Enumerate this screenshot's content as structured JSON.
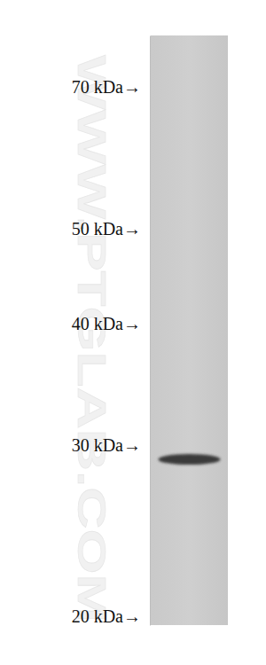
{
  "chart_data": {
    "type": "blot",
    "annotations": [
      "WWW.PTGLAB.COM"
    ],
    "categories": [
      null
    ],
    "values": [
      29
    ],
    "log": "y",
    "ylim": [
      19.6,
      79
    ],
    "yticks": [
      {
        "value": 70,
        "label": "70 kDa→"
      },
      {
        "value": 50,
        "label": "50 kDa→"
      },
      {
        "value": 40,
        "label": "40 kDa→"
      },
      {
        "value": 30,
        "label": "30 kDa→"
      },
      {
        "value": 20,
        "label": "20 kDa→"
      }
    ]
  }
}
